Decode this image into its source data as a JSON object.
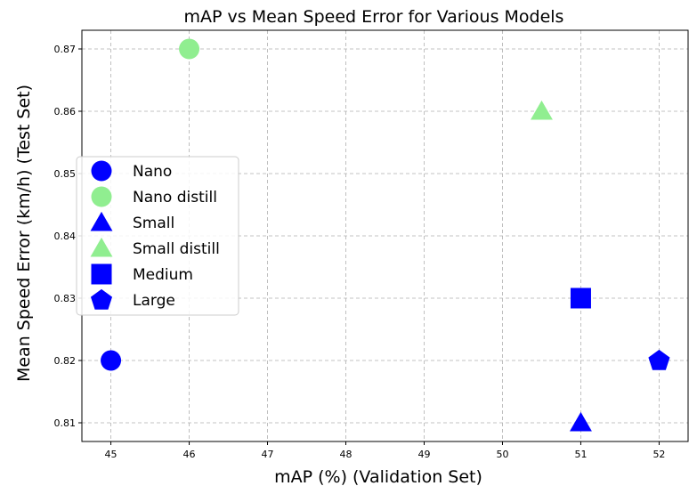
{
  "chart_data": {
    "type": "scatter",
    "title": "mAP vs Mean Speed Error for Various Models",
    "xlabel": "mAP (%) (Validation Set)",
    "ylabel": "Mean Speed Error (km/h) (Test Set)",
    "xlim": [
      44.63,
      52.37
    ],
    "ylim": [
      0.807,
      0.873
    ],
    "xticks": [
      45,
      46,
      47,
      48,
      49,
      50,
      51,
      52
    ],
    "yticks": [
      0.81,
      0.82,
      0.83,
      0.84,
      0.85,
      0.86,
      0.87
    ],
    "ytick_labels": [
      "0.81",
      "0.82",
      "0.83",
      "0.84",
      "0.85",
      "0.86",
      "0.87"
    ],
    "grid": true,
    "legend_position": "center-left",
    "series": [
      {
        "name": "Nano",
        "marker": "circle",
        "color": "#0000ff",
        "points": [
          {
            "x": 45,
            "y": 0.82
          }
        ]
      },
      {
        "name": "Nano distill",
        "marker": "circle",
        "color": "#90ee90",
        "points": [
          {
            "x": 46,
            "y": 0.87
          }
        ]
      },
      {
        "name": "Small",
        "marker": "triangle",
        "color": "#0000ff",
        "points": [
          {
            "x": 51,
            "y": 0.81
          }
        ]
      },
      {
        "name": "Small distill",
        "marker": "triangle",
        "color": "#90ee90",
        "points": [
          {
            "x": 50.5,
            "y": 0.86
          }
        ]
      },
      {
        "name": "Medium",
        "marker": "square",
        "color": "#0000ff",
        "points": [
          {
            "x": 51,
            "y": 0.83
          }
        ]
      },
      {
        "name": "Large",
        "marker": "pentagon",
        "color": "#0000ff",
        "points": [
          {
            "x": 52,
            "y": 0.82
          }
        ]
      }
    ]
  }
}
